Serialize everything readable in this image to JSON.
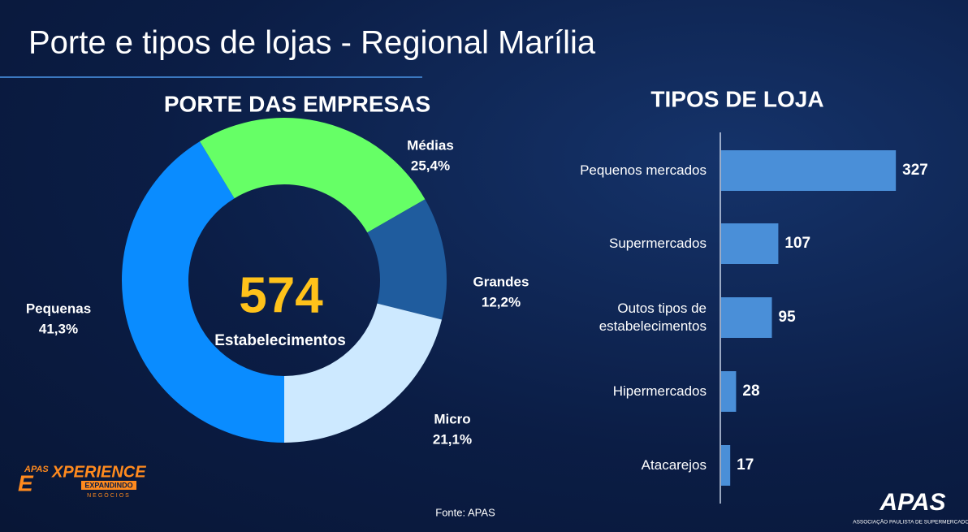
{
  "title": "Porte e tipos de lojas -  Regional Marília",
  "source": "Fonte: APAS",
  "logo_left": {
    "top": "APAS",
    "e": "E",
    "word": "XPERIENCE",
    "line1": "EXPANDINDO",
    "line2": "NEGÓCIOS"
  },
  "logo_right": {
    "name": "APAS",
    "tagline": "ASSOCIAÇÃO PAULISTA DE SUPERMERCADOS"
  },
  "chart_data": [
    {
      "type": "donut",
      "title": "PORTE DAS EMPRESAS",
      "center_value": 574,
      "center_label": "Estabelecimentos",
      "categories": [
        "Pequenas",
        "Médias",
        "Grandes",
        "Micro"
      ],
      "values": [
        41.3,
        25.4,
        12.2,
        21.1
      ],
      "value_labels": [
        "41,3%",
        "25,4%",
        "12,2%",
        "21,1%"
      ],
      "colors": [
        "#0a8cff",
        "#66ff66",
        "#1f5c9e",
        "#cde9ff"
      ]
    },
    {
      "type": "hbar",
      "title": "TIPOS DE LOJA",
      "categories": [
        "Pequenos mercados",
        "Supermercados",
        "Outos tipos de estabelecimentos",
        "Hipermercados",
        "Atacarejos"
      ],
      "values": [
        327,
        107,
        95,
        28,
        17
      ],
      "color": "#4a8fd8"
    }
  ]
}
